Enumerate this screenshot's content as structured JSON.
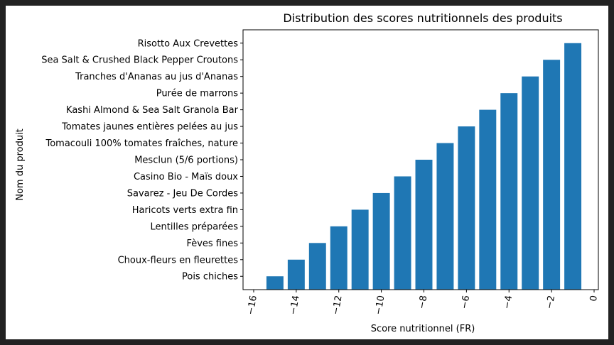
{
  "chart_data": {
    "type": "bar",
    "title": "Distribution des scores nutritionnels des produits",
    "xlabel": "Score nutritionnel (FR)",
    "ylabel": "Nom du produit",
    "xlim": [
      -16.5,
      0.2
    ],
    "xticks": [
      -16,
      -14,
      -12,
      -10,
      -8,
      -6,
      -4,
      -2,
      0
    ],
    "xtick_labels": [
      "−16",
      "−14",
      "−12",
      "−10",
      "−8",
      "−6",
      "−4",
      "−2",
      "0"
    ],
    "bar_color": "#1f77b4",
    "categories": [
      "Pois chiches",
      "Choux-fleurs en fleurettes",
      "Fèves fines",
      "Lentilles préparées",
      "Haricots verts extra fin",
      "Savarez - Jeu De Cordes",
      "Casino Bio - Maïs doux",
      "Mesclun (5/6 portions)",
      "Tomacouli 100% tomates fraîches, nature",
      "Tomates jaunes entières pelées au jus",
      "Kashi Almond & Sea Salt Granola Bar",
      "Purée de marrons",
      "Tranches d'Ananas au jus d'Ananas",
      "Sea Salt & Crushed Black Pepper Croutons",
      "Risotto Aux Crevettes"
    ],
    "values": [
      -15,
      -14,
      -13,
      -12,
      -11,
      -10,
      -9,
      -8,
      -7,
      -6,
      -5,
      -4,
      -3,
      -2,
      -1
    ],
    "grid": false
  }
}
